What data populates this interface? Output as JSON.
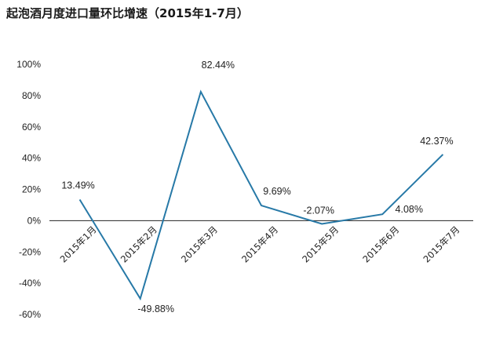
{
  "chart_data": {
    "type": "line",
    "title": "起泡酒月度进口量环比增速（2015年1-7月）",
    "categories": [
      "2015年1月",
      "2015年2月",
      "2015年3月",
      "2015年4月",
      "2015年5月",
      "2015年6月",
      "2015年7月"
    ],
    "values": [
      13.49,
      -49.88,
      82.44,
      9.69,
      -2.07,
      4.08,
      42.37
    ],
    "data_labels": [
      "13.49%",
      "-49.88%",
      "82.44%",
      "9.69%",
      "-2.07%",
      "4.08%",
      "42.37%"
    ],
    "y_ticks": [
      100,
      80,
      60,
      40,
      20,
      0,
      -20,
      -40,
      -60
    ],
    "y_tick_labels": [
      "100%",
      "80%",
      "60%",
      "40%",
      "20%",
      "0%",
      "-20%",
      "-40%",
      "-60%"
    ],
    "ylim": [
      -60,
      100
    ],
    "xlabel": "",
    "ylabel": "",
    "grid": false,
    "legend": "none",
    "line_color": "#2779a7"
  }
}
